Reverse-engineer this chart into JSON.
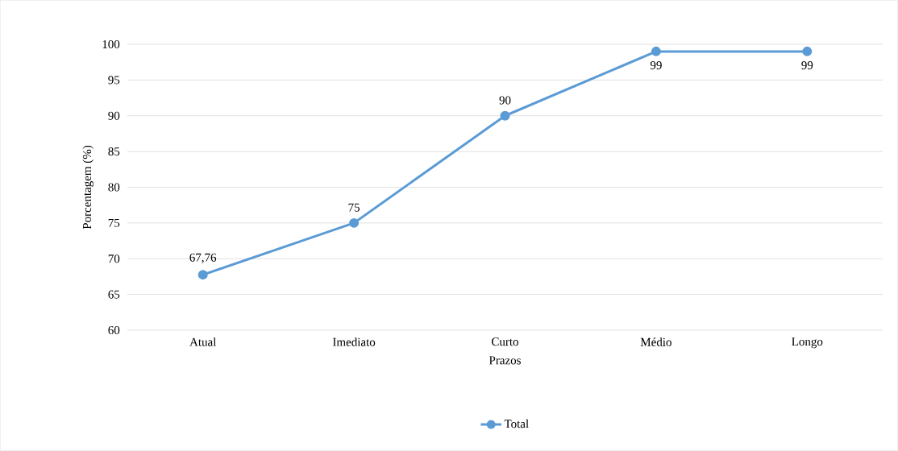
{
  "chart_data": {
    "type": "line",
    "xlabel": "Prazos",
    "ylabel": "Porcentagem (%)",
    "categories": [
      "Atual",
      "Imediato",
      "Curto",
      "Médio",
      "Longo"
    ],
    "series": [
      {
        "name": "Total",
        "color": "#5b9bd5",
        "values": [
          67.76,
          75,
          90,
          99,
          99
        ],
        "value_labels": [
          "67,76",
          "75",
          "90",
          "99",
          "99"
        ]
      }
    ],
    "ylim": [
      60,
      100
    ],
    "yticks": [
      60,
      65,
      70,
      75,
      80,
      85,
      90,
      95,
      100
    ],
    "grid": "y",
    "legend": "bottom",
    "marker": "circle",
    "line_style": "solid"
  }
}
